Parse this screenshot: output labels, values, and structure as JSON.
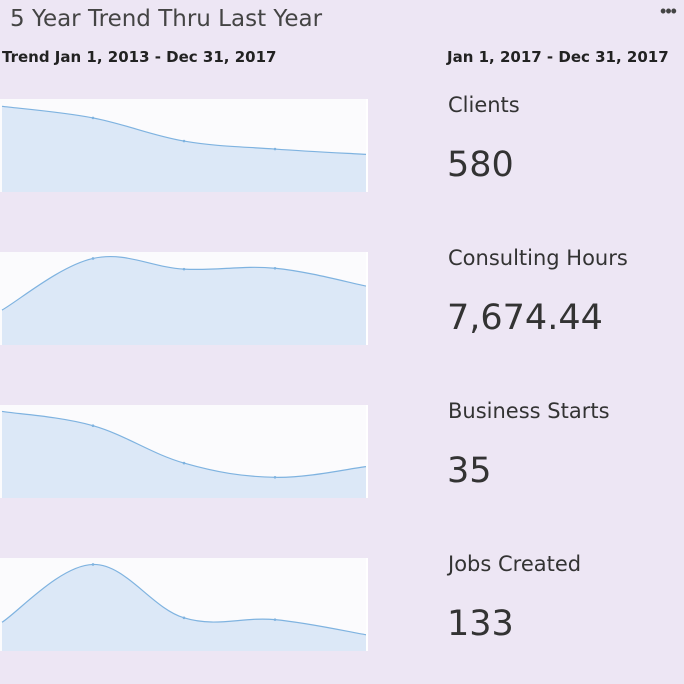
{
  "title": "5 Year Trend Thru Last Year",
  "menu_glyph": "•••",
  "left_header": "Trend Jan 1, 2013 - Dec 31, 2017",
  "right_header": "Jan 1, 2017 - Dec 31, 2017",
  "colors": {
    "fill": "#dce8f7",
    "line": "#7fb3e0",
    "panel": "#fbfbfd",
    "background": "#ede6f4"
  },
  "chart_data": [
    {
      "type": "area",
      "x": [
        2013,
        2014,
        2015,
        2016,
        2017
      ],
      "values": [
        0.94,
        0.81,
        0.55,
        0.46,
        0.4
      ],
      "scale": "relative",
      "ylim": [
        0,
        1
      ],
      "label": "Clients",
      "value": "580"
    },
    {
      "type": "area",
      "x": [
        2013,
        2014,
        2015,
        2016,
        2017
      ],
      "values": [
        0.37,
        0.95,
        0.83,
        0.84,
        0.64
      ],
      "scale": "relative",
      "ylim": [
        0,
        1
      ],
      "label": "Consulting Hours",
      "value": "7,674.44"
    },
    {
      "type": "area",
      "x": [
        2013,
        2014,
        2015,
        2016,
        2017
      ],
      "values": [
        0.95,
        0.79,
        0.37,
        0.21,
        0.33
      ],
      "scale": "relative",
      "ylim": [
        0,
        1
      ],
      "label": "Business Starts",
      "value": "35"
    },
    {
      "type": "area",
      "x": [
        2013,
        2014,
        2015,
        2016,
        2017
      ],
      "values": [
        0.3,
        0.95,
        0.35,
        0.33,
        0.16
      ],
      "scale": "relative",
      "ylim": [
        0,
        1
      ],
      "label": "Jobs Created",
      "value": "133"
    }
  ]
}
